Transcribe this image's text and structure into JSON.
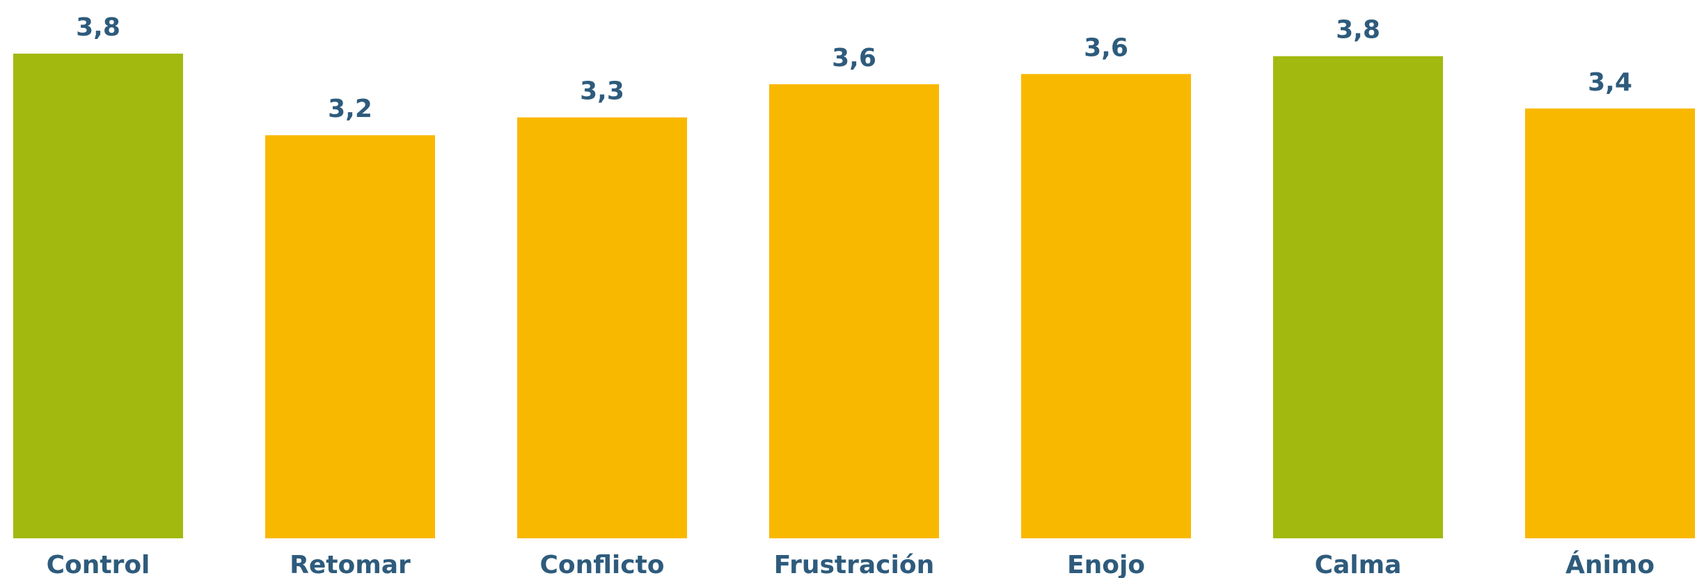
{
  "chart_data": {
    "type": "bar",
    "categories": [
      "Control",
      "Retomar",
      "Conflicto",
      "Frustración",
      "Enojo",
      "Calma",
      "Ánimo"
    ],
    "values": [
      3.8,
      3.16,
      3.3,
      3.56,
      3.64,
      3.78,
      3.37
    ],
    "value_labels": [
      "3,8",
      "3,2",
      "3,3",
      "3,6",
      "3,6",
      "3,8",
      "3,4"
    ],
    "colors": [
      "#a2b90f",
      "#f9b800",
      "#f9b800",
      "#f9b800",
      "#f9b800",
      "#a2b90f",
      "#f9b800"
    ]
  }
}
